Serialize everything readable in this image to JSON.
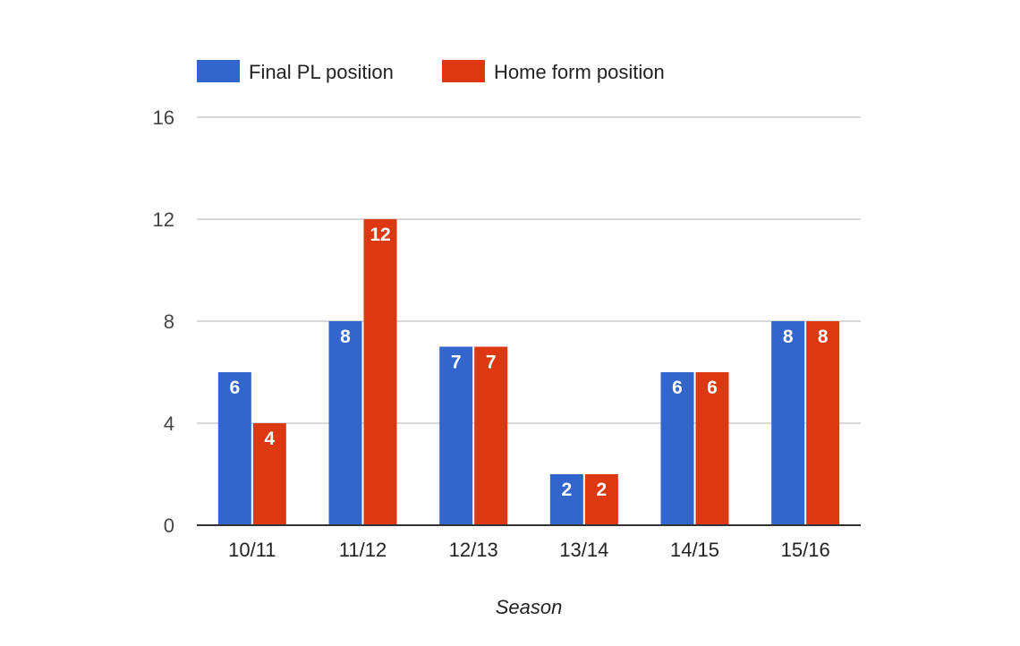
{
  "chart_data": {
    "type": "bar",
    "categories": [
      "10/11",
      "11/12",
      "12/13",
      "13/14",
      "14/15",
      "15/16"
    ],
    "series": [
      {
        "name": "Final PL position",
        "values": [
          6,
          8,
          7,
          2,
          6,
          8
        ],
        "color": "#3366cc"
      },
      {
        "name": "Home form position",
        "values": [
          4,
          12,
          7,
          2,
          6,
          8
        ],
        "color": "#dc3912"
      }
    ],
    "title": "",
    "xlabel": "Season",
    "ylabel": "",
    "ylim": [
      0,
      16
    ],
    "yticks": [
      "0",
      "4",
      "8",
      "12",
      "16"
    ],
    "grid": true,
    "legend_position": "top-left",
    "data_labels": true
  }
}
